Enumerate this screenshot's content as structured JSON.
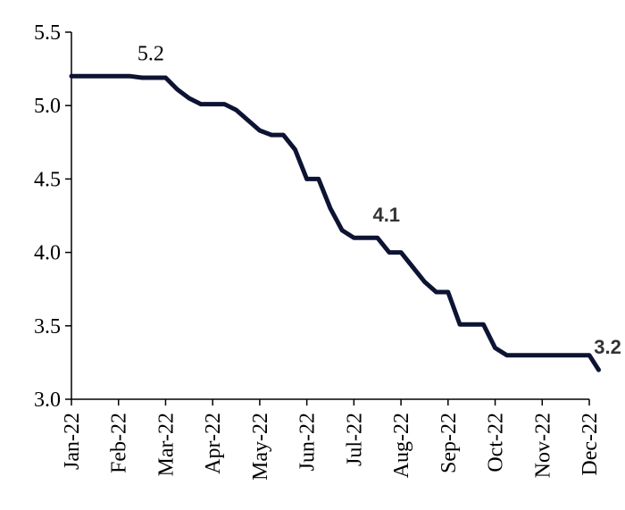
{
  "colors": {
    "line": "#0d1433",
    "axis": "#000000",
    "background": "#ffffff"
  },
  "chart_data": {
    "type": "line",
    "title": "",
    "xlabel": "",
    "ylabel": "",
    "ylim": [
      3.0,
      5.5
    ],
    "y_ticks": [
      "3.0",
      "3.5",
      "4.0",
      "4.5",
      "5.0",
      "5.5"
    ],
    "x_ticks": [
      "Jan-22",
      "Feb-22",
      "Mar-22",
      "Apr-22",
      "May-22",
      "Jun-22",
      "Jul-22",
      "Aug-22",
      "Sep-22",
      "Oct-22",
      "Nov-22",
      "Dec-22"
    ],
    "grid": false,
    "legend": "none",
    "series": [
      {
        "x": [
          0,
          0.25,
          0.5,
          0.75,
          1.0,
          1.25,
          1.5,
          1.75,
          2.0,
          2.25,
          2.5,
          2.75,
          3.0,
          3.25,
          3.5,
          3.75,
          4.0,
          4.25,
          4.5,
          4.75,
          5.0,
          5.25,
          5.5,
          5.75,
          6.0,
          6.25,
          6.5,
          6.75,
          7.0,
          7.25,
          7.5,
          7.75,
          8.0,
          8.25,
          8.5,
          8.75,
          9.0,
          9.25,
          9.5,
          9.75,
          10.0,
          10.25,
          10.5,
          10.75,
          11.0
        ],
        "values": [
          5.2,
          5.2,
          5.2,
          5.2,
          5.2,
          5.2,
          5.19,
          5.19,
          5.19,
          5.11,
          5.05,
          5.01,
          5.01,
          5.01,
          4.97,
          4.9,
          4.83,
          4.8,
          4.8,
          4.7,
          4.5,
          4.5,
          4.3,
          4.15,
          4.1,
          4.1,
          4.1,
          4.0,
          4.0,
          3.9,
          3.8,
          3.73,
          3.73,
          3.51,
          3.51,
          3.51,
          3.35,
          3.3,
          3.3,
          3.3,
          3.3,
          3.3,
          3.3,
          3.3,
          3.3
        ]
      }
    ],
    "tail": {
      "x": [
        11.2
      ],
      "values": [
        3.2
      ]
    },
    "annotations": [
      {
        "text": "5.2",
        "x": 1.4,
        "y": 5.2,
        "style": "serif"
      },
      {
        "text": "4.1",
        "x": 6.4,
        "y": 4.1,
        "style": "sans"
      },
      {
        "text": "3.2",
        "x": 11.1,
        "y": 3.2,
        "style": "sans"
      }
    ]
  }
}
